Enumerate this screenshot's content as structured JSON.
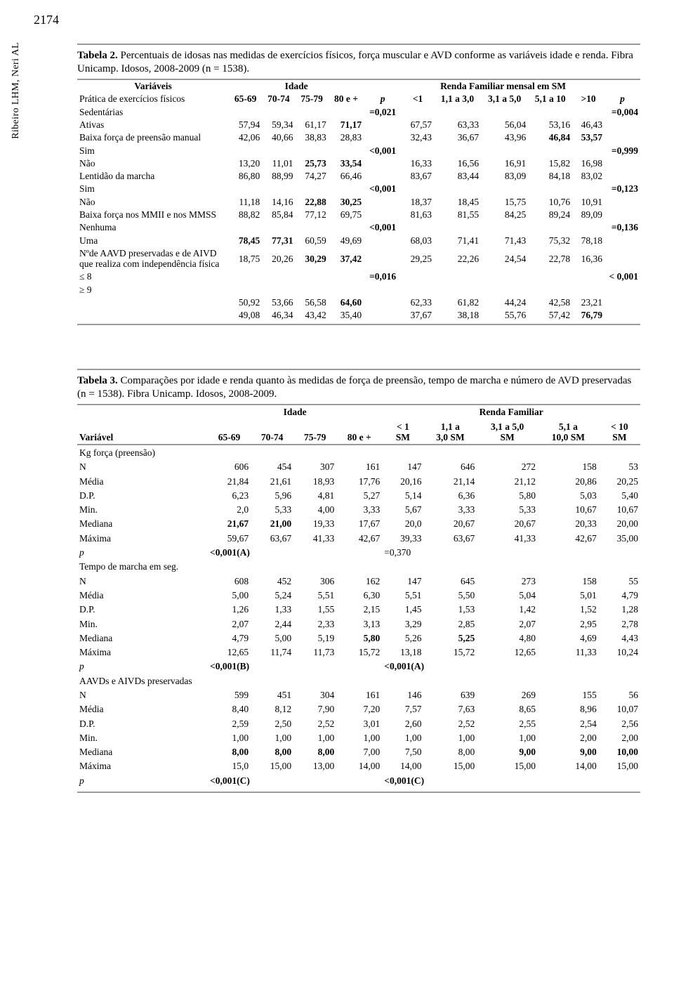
{
  "page_number": "2174",
  "side_label": "Ribeiro LHM, Neri AL",
  "table2": {
    "caption_bold": "Tabela 2.",
    "caption_rest": " Percentuais de idosas nas medidas de exercícios físicos, força muscular e AVD conforme as variáveis idade e renda. Fibra Unicamp. Idosos, 2008-2009 (n = 1538).",
    "col_variaveis": "Variáveis",
    "span_idade": "Idade",
    "span_renda": "Renda Familiar mensal em SM",
    "row_practica": "Prática de exercícios físicos",
    "cols_idade": [
      "65-69",
      "70-74",
      "75-79",
      "80 e +"
    ],
    "p": "p",
    "cols_renda": [
      "<1",
      "1,1 a 3,0",
      "3,1 a 5,0",
      "5,1 a 10",
      ">10"
    ],
    "labels": {
      "sedent": "Sedentárias",
      "ativas": "Ativas",
      "baixa_preensao": "Baixa força de preensão manual",
      "sim": "Sim",
      "nao": "Não",
      "lentidao": "Lentidão da marcha",
      "baixa_mm": "Baixa força nos MMII e nos MMSS",
      "nenhuma": "Nenhuma",
      "uma": "Uma",
      "naavd": "Nºde AAVD preservadas e de AIVD que realiza com independência física",
      "le8": "≤ 8",
      "ge9": "≥ 9"
    },
    "p_idade": {
      "sedent": "=0,021",
      "preensao": "<0,001",
      "lentidao": "<0,001",
      "mm": "<0,001",
      "aavd": "=0,016"
    },
    "p_renda": {
      "sedent": "=0,004",
      "preensao": "=0,999",
      "lentidao": "=0,123",
      "mm": "=0,136",
      "aavd": "< 0,001"
    },
    "rows": {
      "sedent_i": [
        "57,94",
        "59,34",
        "61,17",
        "71,17"
      ],
      "sedent_r": [
        "67,57",
        "63,33",
        "56,04",
        "53,16",
        "46,43"
      ],
      "ativas_i": [
        "42,06",
        "40,66",
        "38,83",
        "28,83"
      ],
      "ativas_r": [
        "32,43",
        "36,67",
        "43,96",
        "46,84",
        "53,57"
      ],
      "psim_i": [
        "13,20",
        "11,01",
        "25,73",
        "33,54"
      ],
      "psim_r": [
        "16,33",
        "16,56",
        "16,91",
        "15,82",
        "16,98"
      ],
      "pnao_i": [
        "86,80",
        "88,99",
        "74,27",
        "66,46"
      ],
      "pnao_r": [
        "83,67",
        "83,44",
        "83,09",
        "84,18",
        "83,02"
      ],
      "lsim_i": [
        "11,18",
        "14,16",
        "22,88",
        "30,25"
      ],
      "lsim_r": [
        "18,37",
        "18,45",
        "15,75",
        "10,76",
        "10,91"
      ],
      "lnao_i": [
        "88,82",
        "85,84",
        "77,12",
        "69,75"
      ],
      "lnao_r": [
        "81,63",
        "81,55",
        "84,25",
        "89,24",
        "89,09"
      ],
      "mnen_i": [
        "78,45",
        "77,31",
        "60,59",
        "49,69"
      ],
      "mnen_r": [
        "68,03",
        "71,41",
        "71,43",
        "75,32",
        "78,18"
      ],
      "muma_i": [
        "18,75",
        "20,26",
        "30,29",
        "37,42"
      ],
      "muma_r": [
        "29,25",
        "22,26",
        "24,54",
        "22,78",
        "16,36"
      ],
      "a8_i": [
        "50,92",
        "53,66",
        "56,58",
        "64,60"
      ],
      "a8_r": [
        "62,33",
        "61,82",
        "44,24",
        "42,58",
        "23,21"
      ],
      "a9_i": [
        "49,08",
        "46,34",
        "43,42",
        "35,40"
      ],
      "a9_r": [
        "37,67",
        "38,18",
        "55,76",
        "57,42",
        "76,79"
      ]
    },
    "bold_cells_t2": {
      "sedent_i.3": true,
      "ativas_r.3": true,
      "ativas_r.4": true,
      "psim_i.2": true,
      "psim_i.3": true,
      "lsim_i.2": true,
      "lsim_i.3": true,
      "mnen_i.0": true,
      "mnen_i.1": true,
      "muma_i.2": true,
      "muma_i.3": true,
      "a8_i.3": true,
      "a9_r.4": true
    }
  },
  "table3": {
    "caption_bold": "Tabela 3.",
    "caption_rest": " Comparações por idade e renda quanto às medidas de força de preensão, tempo de marcha e número de AVD preservadas (n = 1538). Fibra Unicamp. Idosos, 2008-2009.",
    "span_idade": "Idade",
    "span_renda": "Renda Familiar",
    "col_var": "Variável",
    "cols_idade": [
      "65-69",
      "70-74",
      "75-79",
      "80 e +"
    ],
    "cols_renda": [
      "< 1\nSM",
      "1,1 a\n3,0 SM",
      "3,1 a 5,0\nSM",
      "5,1 a\n10,0 SM",
      "< 10\nSM"
    ],
    "sections": {
      "kg": "Kg força (preensão)",
      "tempo": "Tempo de marcha em seg.",
      "aavd": "AAVDs e AIVDs preservadas"
    },
    "stats": [
      "N",
      "Média",
      "D.P.",
      "Min.",
      "Mediana",
      "Máxima",
      "p"
    ],
    "p_italic": "p",
    "kg": {
      "N": [
        "606",
        "454",
        "307",
        "161",
        "147",
        "646",
        "272",
        "158",
        "53"
      ],
      "Media": [
        "21,84",
        "21,61",
        "18,93",
        "17,76",
        "20,16",
        "21,14",
        "21,12",
        "20,86",
        "20,25"
      ],
      "DP": [
        "6,23",
        "5,96",
        "4,81",
        "5,27",
        "5,14",
        "6,36",
        "5,80",
        "5,03",
        "5,40"
      ],
      "Min": [
        "2,0",
        "5,33",
        "4,00",
        "3,33",
        "5,67",
        "3,33",
        "5,33",
        "10,67",
        "10,67"
      ],
      "Mediana": [
        "21,67",
        "21,00",
        "19,33",
        "17,67",
        "20,0",
        "20,67",
        "20,67",
        "20,33",
        "20,00"
      ],
      "Maxima": [
        "59,67",
        "63,67",
        "41,33",
        "42,67",
        "39,33",
        "63,67",
        "41,33",
        "42,67",
        "35,00"
      ],
      "p_i": "<0,001(A)",
      "p_r": "=0,370"
    },
    "tempo": {
      "N": [
        "608",
        "452",
        "306",
        "162",
        "147",
        "645",
        "273",
        "158",
        "55"
      ],
      "Media": [
        "5,00",
        "5,24",
        "5,51",
        "6,30",
        "5,51",
        "5,50",
        "5,04",
        "5,01",
        "4,79"
      ],
      "DP": [
        "1,26",
        "1,33",
        "1,55",
        "2,15",
        "1,45",
        "1,53",
        "1,42",
        "1,52",
        "1,28"
      ],
      "Min": [
        "2,07",
        "2,44",
        "2,33",
        "3,13",
        "3,29",
        "2,85",
        "2,07",
        "2,95",
        "2,78"
      ],
      "Mediana": [
        "4,79",
        "5,00",
        "5,19",
        "5,80",
        "5,26",
        "5,25",
        "4,80",
        "4,69",
        "4,43"
      ],
      "Maxima": [
        "12,65",
        "11,74",
        "11,73",
        "15,72",
        "13,18",
        "15,72",
        "12,65",
        "11,33",
        "10,24"
      ],
      "p_i": "<0,001(B)",
      "p_r": "<0,001(A)"
    },
    "aavd": {
      "N": [
        "599",
        "451",
        "304",
        "161",
        "146",
        "639",
        "269",
        "155",
        "56"
      ],
      "Media": [
        "8,40",
        "8,12",
        "7,90",
        "7,20",
        "7,57",
        "7,63",
        "8,65",
        "8,96",
        "10,07"
      ],
      "DP": [
        "2,59",
        "2,50",
        "2,52",
        "3,01",
        "2,60",
        "2,52",
        "2,55",
        "2,54",
        "2,56"
      ],
      "Min": [
        "1,00",
        "1,00",
        "1,00",
        "1,00",
        "1,00",
        "1,00",
        "1,00",
        "2,00",
        "2,00"
      ],
      "Mediana": [
        "8,00",
        "8,00",
        "8,00",
        "7,00",
        "7,50",
        "8,00",
        "9,00",
        "9,00",
        "10,00"
      ],
      "Maxima": [
        "15,0",
        "15,00",
        "13,00",
        "14,00",
        "14,00",
        "15,00",
        "15,00",
        "14,00",
        "15,00"
      ],
      "p_i": "<0,001(C)",
      "p_r": "<0,001(C)"
    },
    "bold_cells_t3": {
      "kg.Mediana.0": true,
      "kg.Mediana.1": true,
      "kg.p_i": true,
      "tempo.Mediana.3": true,
      "tempo.Mediana.5": true,
      "tempo.p_i": true,
      "tempo.p_r": true,
      "aavd.Mediana.0": true,
      "aavd.Mediana.1": true,
      "aavd.Mediana.2": true,
      "aavd.Mediana.6": true,
      "aavd.Mediana.7": true,
      "aavd.Mediana.8": true,
      "aavd.p_i": true,
      "aavd.p_r": true
    }
  }
}
